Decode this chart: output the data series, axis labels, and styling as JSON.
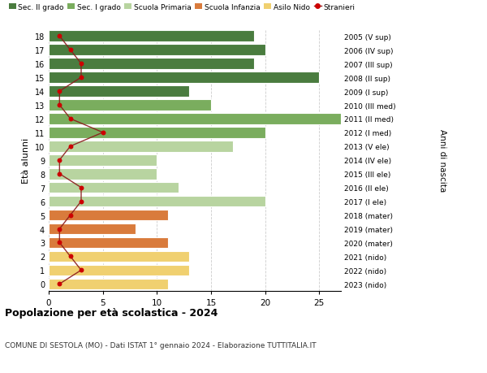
{
  "ages": [
    18,
    17,
    16,
    15,
    14,
    13,
    12,
    11,
    10,
    9,
    8,
    7,
    6,
    5,
    4,
    3,
    2,
    1,
    0
  ],
  "bar_values": [
    19,
    20,
    19,
    25,
    13,
    15,
    27,
    20,
    17,
    10,
    10,
    12,
    20,
    11,
    8,
    11,
    13,
    13,
    11
  ],
  "bar_colors": [
    "#4a7c3f",
    "#4a7c3f",
    "#4a7c3f",
    "#4a7c3f",
    "#4a7c3f",
    "#7aad5e",
    "#7aad5e",
    "#7aad5e",
    "#b8d4a0",
    "#b8d4a0",
    "#b8d4a0",
    "#b8d4a0",
    "#b8d4a0",
    "#d97b3c",
    "#d97b3c",
    "#d97b3c",
    "#f0d070",
    "#f0d070",
    "#f0d070"
  ],
  "stranieri_values": [
    1,
    2,
    3,
    3,
    1,
    1,
    2,
    5,
    2,
    1,
    1,
    3,
    3,
    2,
    1,
    1,
    2,
    3,
    1
  ],
  "right_labels": [
    "2005 (V sup)",
    "2006 (IV sup)",
    "2007 (III sup)",
    "2008 (II sup)",
    "2009 (I sup)",
    "2010 (III med)",
    "2011 (II med)",
    "2012 (I med)",
    "2013 (V ele)",
    "2014 (IV ele)",
    "2015 (III ele)",
    "2016 (II ele)",
    "2017 (I ele)",
    "2018 (mater)",
    "2019 (mater)",
    "2020 (mater)",
    "2021 (nido)",
    "2022 (nido)",
    "2023 (nido)"
  ],
  "legend_labels": [
    "Sec. II grado",
    "Sec. I grado",
    "Scuola Primaria",
    "Scuola Infanzia",
    "Asilo Nido",
    "Stranieri"
  ],
  "legend_colors": [
    "#4a7c3f",
    "#7aad5e",
    "#b8d4a0",
    "#d97b3c",
    "#f0d070",
    "#cc0000"
  ],
  "ylabel": "Età alunni",
  "ylabel_right": "Anni di nascita",
  "title": "Popolazione per età scolastica - 2024",
  "subtitle": "COMUNE DI SESTOLA (MO) - Dati ISTAT 1° gennaio 2024 - Elaborazione TUTTITALIA.IT",
  "xlim": [
    0,
    27
  ],
  "bar_background": "#ffffff",
  "grid_color": "#cccccc"
}
